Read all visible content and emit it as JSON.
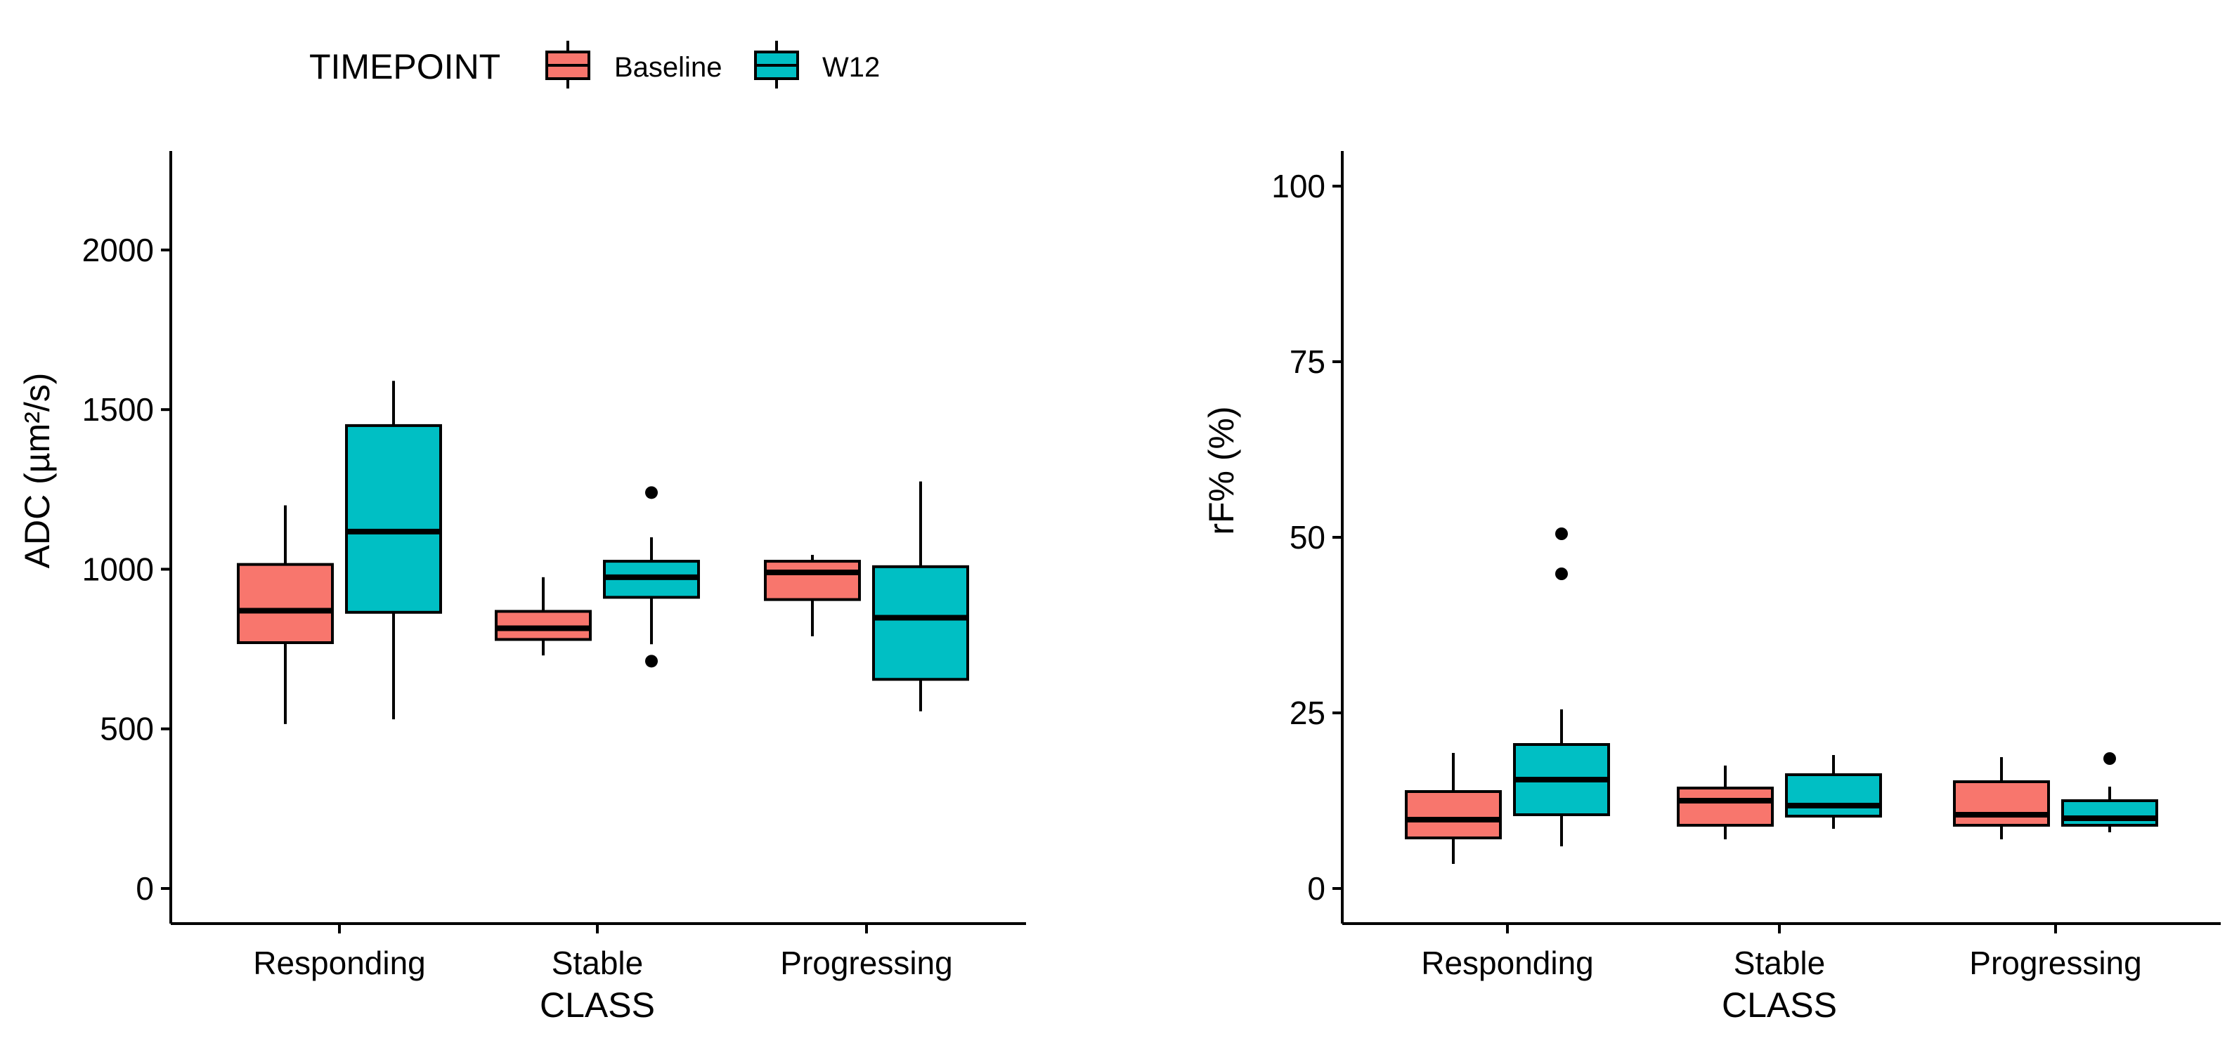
{
  "legend": {
    "title": "TIMEPOINT",
    "items": [
      {
        "label": "Baseline",
        "color": "#F8766D"
      },
      {
        "label": "W12",
        "color": "#00BFC4"
      }
    ]
  },
  "chart_data": [
    {
      "type": "boxplot",
      "ylabel": "ADC (µm²/s)",
      "xlabel": "CLASS",
      "ylim": [
        -110,
        2310
      ],
      "yticks": [
        0,
        500,
        1000,
        1500,
        2000
      ],
      "yticklabels": [
        "0",
        "500",
        "1000",
        "1500",
        "2000"
      ],
      "categories": [
        "Responding",
        "Stable",
        "Progressing"
      ],
      "series": [
        {
          "name": "Baseline",
          "boxes": [
            {
              "lower": 515,
              "q1": 770,
              "median": 870,
              "q3": 1015,
              "upper": 1200,
              "outliers": []
            },
            {
              "lower": 730,
              "q1": 780,
              "median": 815,
              "q3": 868,
              "upper": 975,
              "outliers": []
            },
            {
              "lower": 790,
              "q1": 905,
              "median": 990,
              "q3": 1025,
              "upper": 1045,
              "outliers": []
            }
          ]
        },
        {
          "name": "W12",
          "boxes": [
            {
              "lower": 530,
              "q1": 865,
              "median": 1118,
              "q3": 1450,
              "upper": 1590,
              "outliers": []
            },
            {
              "lower": 765,
              "q1": 912,
              "median": 975,
              "q3": 1025,
              "upper": 1100,
              "outliers": [
                1240,
                712
              ]
            },
            {
              "lower": 555,
              "q1": 655,
              "median": 848,
              "q3": 1008,
              "upper": 1275,
              "outliers": []
            }
          ]
        }
      ]
    },
    {
      "type": "boxplot",
      "ylabel": "rF% (%)",
      "xlabel": "CLASS",
      "ylim": [
        -5,
        105
      ],
      "yticks": [
        0,
        25,
        50,
        75,
        100
      ],
      "yticklabels": [
        "0",
        "25",
        "50",
        "75",
        "100"
      ],
      "categories": [
        "Responding",
        "Stable",
        "Progressing"
      ],
      "series": [
        {
          "name": "Baseline",
          "boxes": [
            {
              "lower": 3.5,
              "q1": 7.2,
              "median": 9.8,
              "q3": 13.8,
              "upper": 19.3,
              "outliers": []
            },
            {
              "lower": 7.0,
              "q1": 9.0,
              "median": 12.5,
              "q3": 14.3,
              "upper": 17.5,
              "outliers": []
            },
            {
              "lower": 7.0,
              "q1": 9.0,
              "median": 10.5,
              "q3": 15.2,
              "upper": 18.7,
              "outliers": []
            }
          ]
        },
        {
          "name": "W12",
          "boxes": [
            {
              "lower": 6.0,
              "q1": 10.5,
              "median": 15.5,
              "q3": 20.5,
              "upper": 25.5,
              "outliers": [
                50.5,
                44.8
              ]
            },
            {
              "lower": 8.5,
              "q1": 10.3,
              "median": 11.8,
              "q3": 16.2,
              "upper": 19.0,
              "outliers": []
            },
            {
              "lower": 8.0,
              "q1": 9.0,
              "median": 10.0,
              "q3": 12.5,
              "upper": 14.5,
              "outliers": [
                18.5
              ]
            }
          ]
        }
      ]
    }
  ]
}
